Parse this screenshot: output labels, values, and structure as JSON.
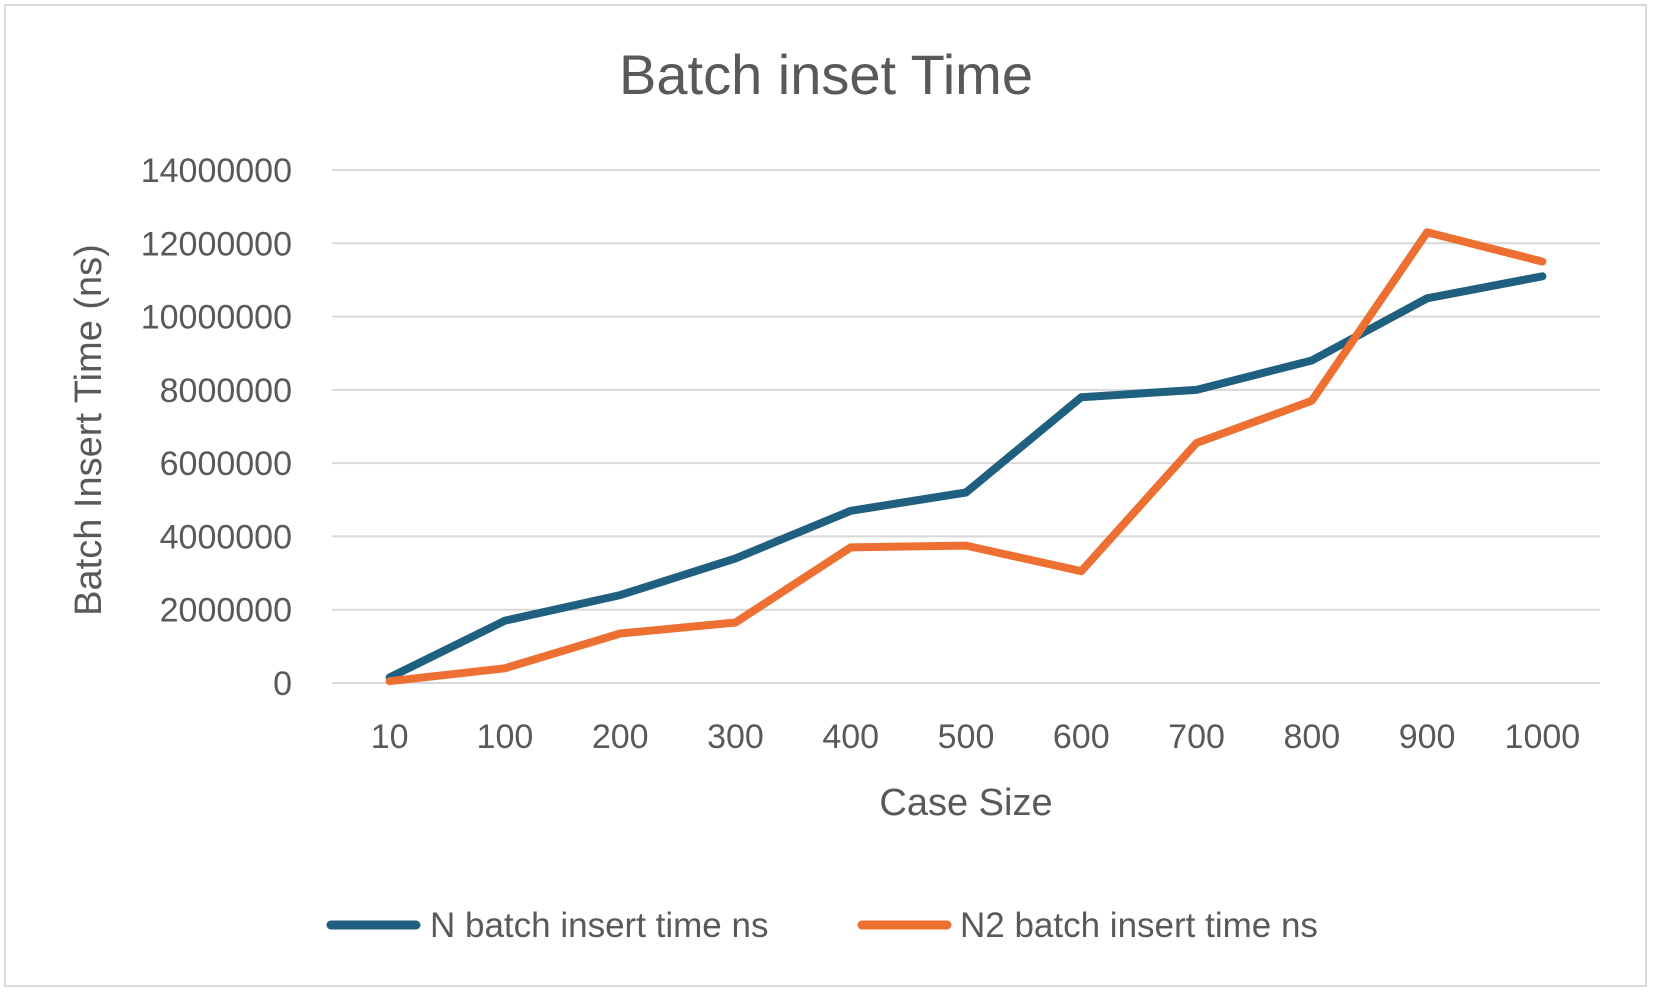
{
  "chart_data": {
    "type": "line",
    "title": "Batch inset Time",
    "xlabel": "Case Size",
    "ylabel": "Batch Insert Time (ns)",
    "categories": [
      "10",
      "100",
      "200",
      "300",
      "400",
      "500",
      "600",
      "700",
      "800",
      "900",
      "1000"
    ],
    "ylim": [
      0,
      14000000
    ],
    "yticks": [
      "0",
      "2000000",
      "4000000",
      "6000000",
      "8000000",
      "10000000",
      "12000000",
      "14000000"
    ],
    "grid": true,
    "legend_position": "bottom",
    "series": [
      {
        "name": "N batch insert time ns",
        "color": "#1f5f7f",
        "values": [
          150000,
          1700000,
          2400000,
          3400000,
          4700000,
          5200000,
          7800000,
          8000000,
          8800000,
          10500000,
          11100000
        ]
      },
      {
        "name": "N2 batch insert time ns",
        "color": "#ed7032",
        "values": [
          50000,
          400000,
          1350000,
          1650000,
          3700000,
          3750000,
          3050000,
          6550000,
          7700000,
          12300000,
          11500000
        ]
      }
    ]
  }
}
